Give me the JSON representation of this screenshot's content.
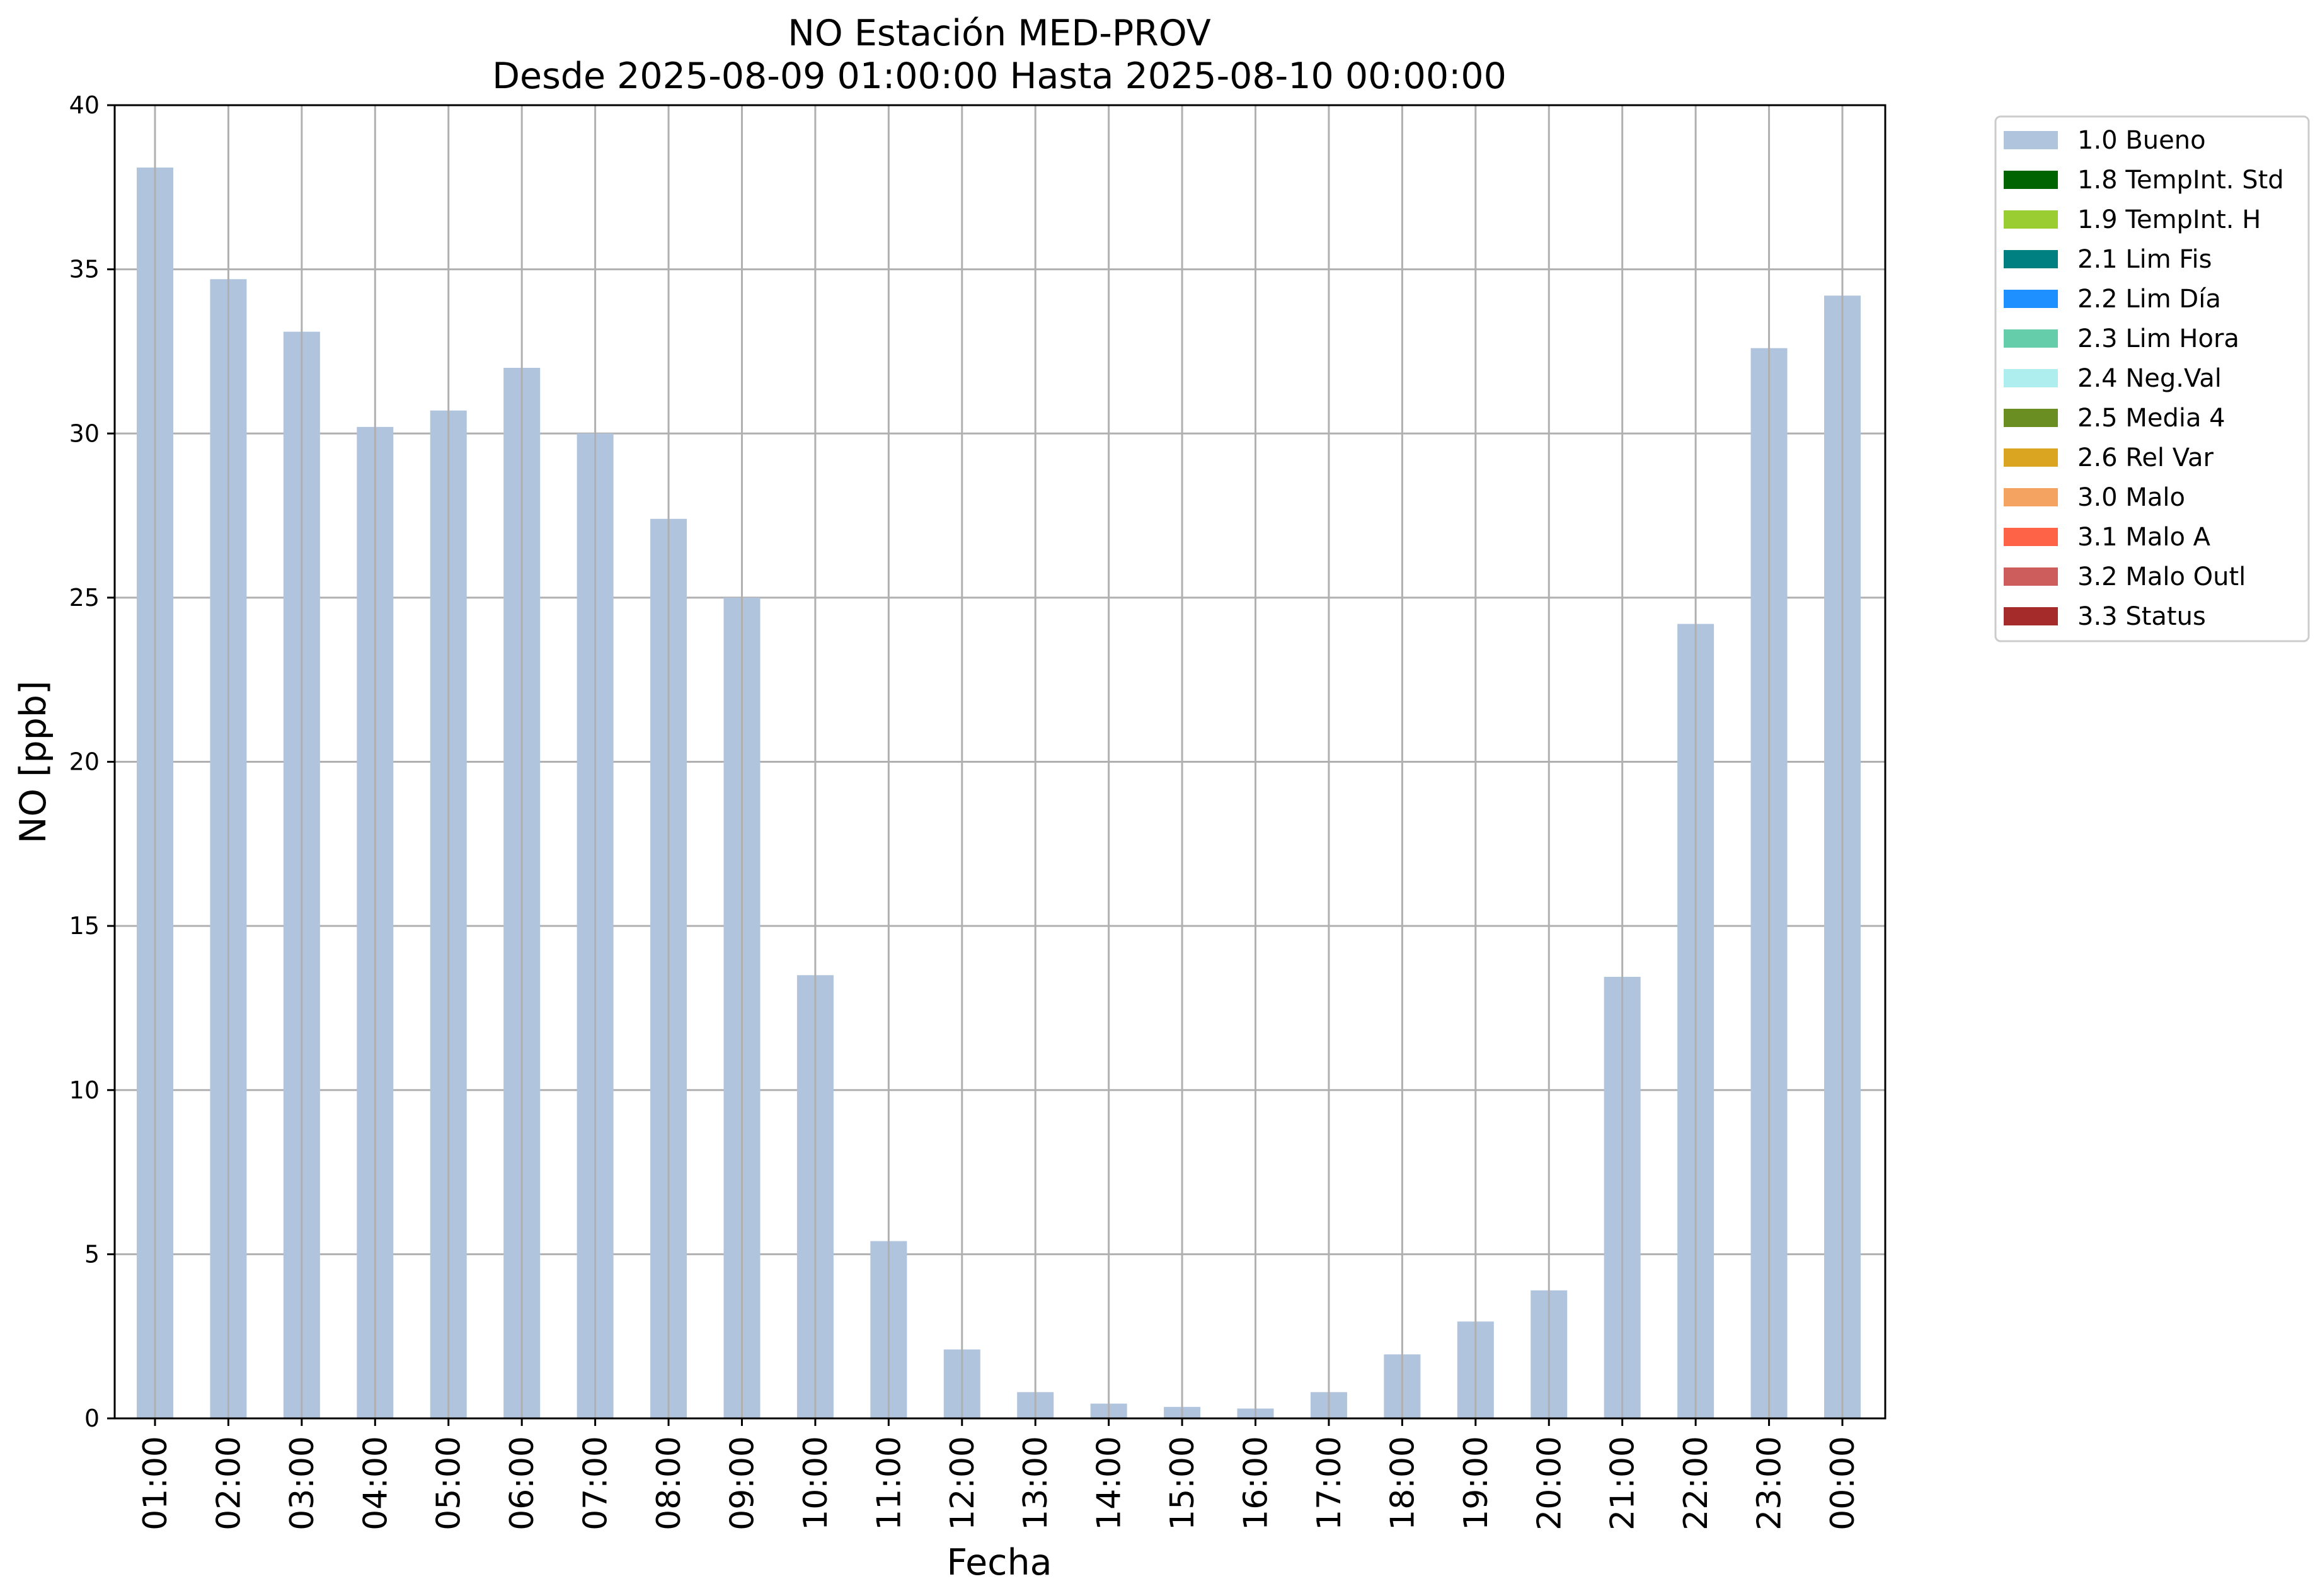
{
  "chart_data": {
    "type": "bar",
    "title": "NO Estación MED-PROV",
    "subtitle": "Desde 2025-08-09 01:00:00 Hasta 2025-08-10 00:00:00",
    "xlabel": "Fecha",
    "ylabel": "NO [ppb]",
    "ylim": [
      0,
      40
    ],
    "yticks": [
      "0",
      "5",
      "10",
      "15",
      "20",
      "25",
      "30",
      "35",
      "40"
    ],
    "grid": true,
    "legend_position": "outside-top-right",
    "categories": [
      "01:00",
      "02:00",
      "03:00",
      "04:00",
      "05:00",
      "06:00",
      "07:00",
      "08:00",
      "09:00",
      "10:00",
      "11:00",
      "12:00",
      "13:00",
      "14:00",
      "15:00",
      "16:00",
      "17:00",
      "18:00",
      "19:00",
      "20:00",
      "21:00",
      "22:00",
      "23:00",
      "00:00"
    ],
    "series": [
      {
        "name": "1.0 Bueno",
        "color": "#b0c4de",
        "values": [
          38.1,
          34.7,
          33.1,
          30.2,
          30.7,
          32.0,
          30.0,
          27.4,
          25.0,
          13.5,
          5.4,
          2.1,
          0.8,
          0.45,
          0.35,
          0.3,
          0.8,
          1.95,
          2.95,
          3.9,
          13.45,
          24.2,
          32.6,
          34.2
        ]
      }
    ],
    "legend": [
      {
        "label": "1.0 Bueno",
        "color": "#b0c4de"
      },
      {
        "label": "1.8 TempInt. Std",
        "color": "#006400"
      },
      {
        "label": "1.9 TempInt. H",
        "color": "#9acd32"
      },
      {
        "label": "2.1 Lim Fis",
        "color": "#008080"
      },
      {
        "label": "2.2 Lim Día",
        "color": "#1e90ff"
      },
      {
        "label": "2.3 Lim Hora",
        "color": "#66cdaa"
      },
      {
        "label": "2.4 Neg.Val",
        "color": "#afeeee"
      },
      {
        "label": "2.5 Media 4",
        "color": "#6b8e23"
      },
      {
        "label": "2.6 Rel Var",
        "color": "#daa520"
      },
      {
        "label": "3.0 Malo",
        "color": "#f4a460"
      },
      {
        "label": "3.1 Malo A",
        "color": "#ff6347"
      },
      {
        "label": "3.2 Malo Outl",
        "color": "#cd5c5c"
      },
      {
        "label": "3.3 Status",
        "color": "#a52a2a"
      }
    ]
  }
}
